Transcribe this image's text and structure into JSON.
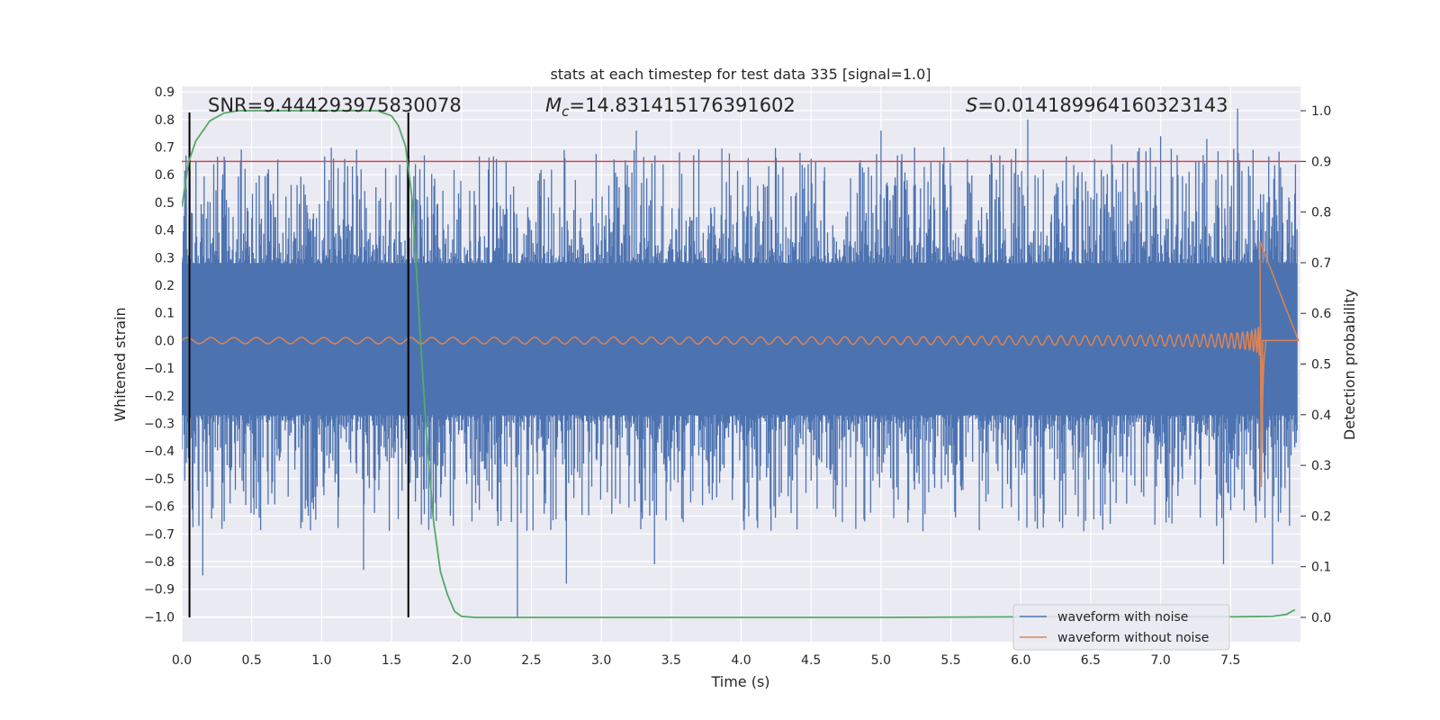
{
  "chart_data": {
    "type": "line",
    "title": "stats at each timestep for test data 335 [signal=1.0]",
    "xlabel": "Time (s)",
    "ylabel": "Whitened strain",
    "ylabel_right": "Detection probability",
    "xlim": [
      0.0,
      8.0
    ],
    "ylim": [
      -1.09,
      0.92
    ],
    "ylim_right": [
      -0.048,
      1.048
    ],
    "x_ticks": [
      0.0,
      0.5,
      1.0,
      1.5,
      2.0,
      2.5,
      3.0,
      3.5,
      4.0,
      4.5,
      5.0,
      5.5,
      6.0,
      6.5,
      7.0,
      7.5
    ],
    "x_tick_labels": [
      "0.0",
      "0.5",
      "1.0",
      "1.5",
      "2.0",
      "2.5",
      "3.0",
      "3.5",
      "4.0",
      "4.5",
      "5.0",
      "5.5",
      "6.0",
      "6.5",
      "7.0",
      "7.5"
    ],
    "y_ticks": [
      0.9,
      0.8,
      0.7,
      0.6,
      0.5,
      0.4,
      0.3,
      0.2,
      0.1,
      0.0,
      -0.1,
      -0.2,
      -0.3,
      -0.4,
      -0.5,
      -0.6,
      -0.7,
      -0.8,
      -0.9,
      -1.0
    ],
    "y_tick_labels": [
      "0.9",
      "0.8",
      "0.7",
      "0.6",
      "0.5",
      "0.4",
      "0.3",
      "0.2",
      "0.1",
      "0.0",
      "−0.1",
      "−0.2",
      "−0.3",
      "−0.4",
      "−0.5",
      "−0.6",
      "−0.7",
      "−0.8",
      "−0.9",
      "−1.0"
    ],
    "y2_ticks": [
      1.0,
      0.9,
      0.8,
      0.7,
      0.6,
      0.5,
      0.4,
      0.3,
      0.2,
      0.1,
      0.0
    ],
    "y2_tick_labels": [
      "1.0",
      "0.9",
      "0.8",
      "0.7",
      "0.6",
      "0.5",
      "0.4",
      "0.3",
      "0.2",
      "0.1",
      "0.0"
    ],
    "grid": true,
    "legend_position": "bottom-right",
    "threshold_probability": 0.9,
    "vertical_markers": [
      0.055,
      1.62
    ],
    "annotations": {
      "snr": "SNR=9.444293975830078",
      "mc_symbol": "M",
      "mc_sub": "c",
      "mc_value": "=14.831415176391602",
      "s_symbol": "S",
      "s_value": "=0.014189964160323143"
    },
    "series": [
      {
        "name": "waveform with noise",
        "color": "#4c72b0",
        "description": "whitened noisy strain, approx. zero-mean noise with spikes between -1.0 and 0.84",
        "band_max": 0.28,
        "band_min": -0.27,
        "spike_peaks": [
          [
            0.03,
            0.67
          ],
          [
            0.62,
            0.62
          ],
          [
            1.22,
            0.63
          ],
          [
            3.25,
            0.76
          ],
          [
            4.05,
            0.66
          ],
          [
            5.0,
            0.76
          ],
          [
            5.45,
            0.7
          ],
          [
            5.85,
            0.67
          ],
          [
            6.05,
            0.8
          ],
          [
            6.65,
            0.71
          ],
          [
            7.0,
            0.74
          ],
          [
            7.33,
            0.73
          ],
          [
            7.55,
            0.84
          ]
        ],
        "spike_troughs": [
          [
            0.15,
            -0.85
          ],
          [
            1.3,
            -0.83
          ],
          [
            2.4,
            -1.0
          ],
          [
            2.75,
            -0.88
          ],
          [
            3.38,
            -0.81
          ],
          [
            5.3,
            -0.69
          ],
          [
            6.45,
            -0.69
          ],
          [
            7.45,
            -0.81
          ],
          [
            7.8,
            -0.81
          ]
        ]
      },
      {
        "name": "waveform without noise",
        "color": "#dd8452",
        "description": "chirp signal merging at ~7.72 s",
        "merger_time": 7.72,
        "peak_amplitude": 0.36,
        "min_amplitude": -0.53
      },
      {
        "name": "detection probability",
        "color": "#55a868",
        "axis": "right",
        "x": [
          0.0,
          0.05,
          0.1,
          0.15,
          0.2,
          0.3,
          0.4,
          0.6,
          0.8,
          1.0,
          1.2,
          1.4,
          1.5,
          1.55,
          1.6,
          1.65,
          1.7,
          1.75,
          1.8,
          1.85,
          1.9,
          1.95,
          2.0,
          2.1,
          2.5,
          3.0,
          4.0,
          5.0,
          6.0,
          7.0,
          7.5,
          7.8,
          7.9,
          7.96
        ],
        "values": [
          0.81,
          0.9,
          0.94,
          0.96,
          0.98,
          0.995,
          1.0,
          1.0,
          1.0,
          1.0,
          1.0,
          1.0,
          0.99,
          0.97,
          0.93,
          0.82,
          0.58,
          0.36,
          0.19,
          0.09,
          0.045,
          0.012,
          0.002,
          0.0,
          0.0,
          0.0,
          0.0,
          0.0,
          0.001,
          0.001,
          0.001,
          0.002,
          0.006,
          0.015
        ]
      }
    ]
  }
}
